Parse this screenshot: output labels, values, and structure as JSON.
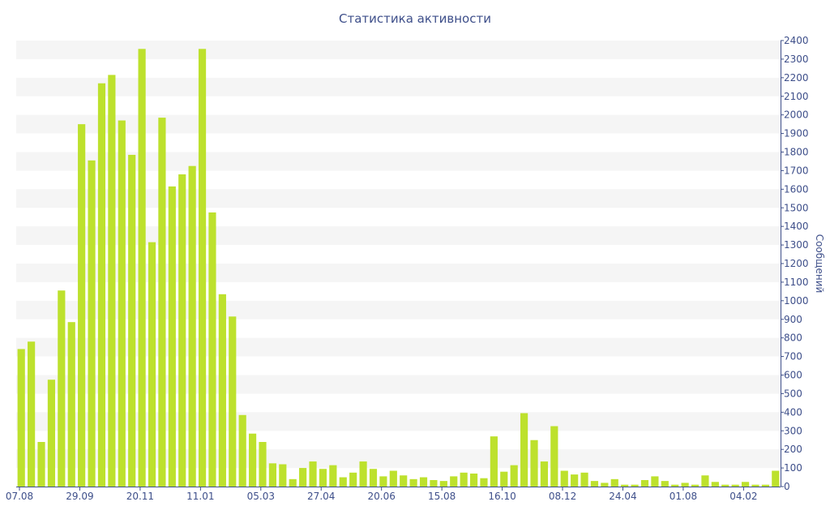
{
  "chart_data": {
    "type": "bar",
    "title": "Статистика активности",
    "xlabel": "",
    "ylabel": "Сообщений",
    "ylim": [
      0,
      2400
    ],
    "y_axis_side": "right",
    "y_ticks": [
      0,
      100,
      200,
      300,
      400,
      500,
      600,
      700,
      800,
      900,
      1000,
      1100,
      1200,
      1300,
      1400,
      1500,
      1600,
      1700,
      1800,
      1900,
      2000,
      2100,
      2200,
      2300,
      2400
    ],
    "x_tick_labels": [
      {
        "index": 0,
        "label": "07.08"
      },
      {
        "index": 6,
        "label": "29.09"
      },
      {
        "index": 12,
        "label": "20.11"
      },
      {
        "index": 18,
        "label": "11.01"
      },
      {
        "index": 24,
        "label": "05.03"
      },
      {
        "index": 30,
        "label": "27.04"
      },
      {
        "index": 36,
        "label": "20.06"
      },
      {
        "index": 42,
        "label": "15.08"
      },
      {
        "index": 48,
        "label": "16.10"
      },
      {
        "index": 54,
        "label": "08.12"
      },
      {
        "index": 60,
        "label": "24.04"
      },
      {
        "index": 66,
        "label": "01.08"
      },
      {
        "index": 72,
        "label": "04.02"
      }
    ],
    "grid": "alternating horizontal bands",
    "bar_color": "#bde12d",
    "values": [
      740,
      780,
      240,
      575,
      1055,
      885,
      1950,
      1755,
      2170,
      2215,
      1970,
      1785,
      2355,
      1315,
      1985,
      1615,
      1680,
      1725,
      2355,
      1475,
      1035,
      915,
      385,
      285,
      240,
      125,
      120,
      40,
      100,
      135,
      95,
      115,
      50,
      75,
      135,
      95,
      55,
      85,
      60,
      40,
      50,
      35,
      30,
      55,
      75,
      70,
      45,
      270,
      80,
      115,
      395,
      250,
      135,
      325,
      85,
      65,
      75,
      30,
      20,
      40,
      10,
      10,
      35,
      55,
      30,
      10,
      20,
      10,
      60,
      25,
      10,
      10,
      25,
      10,
      10,
      85
    ]
  }
}
